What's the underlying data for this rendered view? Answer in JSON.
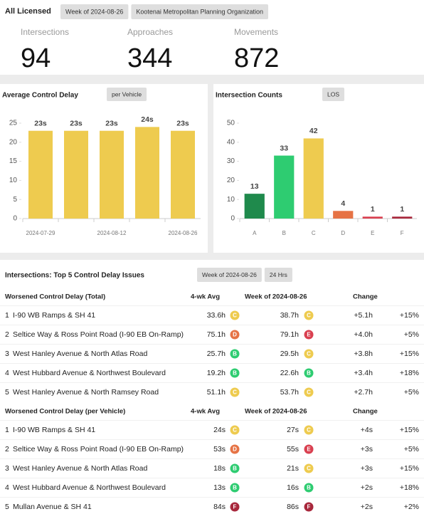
{
  "header": {
    "title": "All Licensed",
    "chips": [
      "Week of 2024-08-26",
      "Kootenai Metropolitan Planning Organization"
    ]
  },
  "kpis": [
    {
      "label": "Intersections",
      "value": 94
    },
    {
      "label": "Approaches",
      "value": 344
    },
    {
      "label": "Movements",
      "value": 872
    }
  ],
  "chart_data": [
    {
      "type": "bar",
      "title": "Average Control Delay",
      "badge": "per Vehicle",
      "categories": [
        "2024-07-29",
        null,
        "2024-08-12",
        null,
        "2024-08-26"
      ],
      "values": [
        23,
        23,
        23,
        24,
        23
      ],
      "value_labels": [
        "23s",
        "23s",
        "23s",
        "24s",
        "23s"
      ],
      "color": "#eecb4f",
      "ylim": [
        0,
        25
      ],
      "yticks": [
        0,
        5,
        10,
        15,
        20,
        25
      ]
    },
    {
      "type": "bar",
      "title": "Intersection Counts",
      "badge": "LOS",
      "categories": [
        "A",
        "B",
        "C",
        "D",
        "E",
        "F"
      ],
      "values": [
        13,
        33,
        42,
        4,
        1,
        1
      ],
      "colors": [
        "#1f8a4c",
        "#2ecc71",
        "#eecb4f",
        "#e67345",
        "#d94050",
        "#a8283c"
      ],
      "ylim": [
        0,
        50
      ],
      "yticks": [
        0,
        10,
        20,
        30,
        40,
        50
      ]
    }
  ],
  "table": {
    "title": "Intersections: Top 5 Control Delay Issues",
    "chips": [
      "Week of 2024-08-26",
      "24 Hrs"
    ],
    "sections": [
      {
        "header": [
          "Worsened Control Delay (Total)",
          "4-wk Avg",
          "Week of 2024-08-26",
          "Change"
        ],
        "rows": [
          {
            "rank": 1,
            "name": "I-90 WB Ramps & SH 41",
            "avg": "33.6h",
            "avg_los": "C",
            "week": "38.7h",
            "week_los": "C",
            "change": "+5.1h",
            "pct": "+15%"
          },
          {
            "rank": 2,
            "name": "Seltice Way & Ross Point Road (I-90 EB On-Ramp)",
            "avg": "75.1h",
            "avg_los": "D",
            "week": "79.1h",
            "week_los": "E",
            "change": "+4.0h",
            "pct": "+5%"
          },
          {
            "rank": 3,
            "name": "West Hanley Avenue & North Atlas Road",
            "avg": "25.7h",
            "avg_los": "B",
            "week": "29.5h",
            "week_los": "C",
            "change": "+3.8h",
            "pct": "+15%"
          },
          {
            "rank": 4,
            "name": "West Hubbard Avenue & Northwest Boulevard",
            "avg": "19.2h",
            "avg_los": "B",
            "week": "22.6h",
            "week_los": "B",
            "change": "+3.4h",
            "pct": "+18%"
          },
          {
            "rank": 5,
            "name": "West Hanley Avenue & North Ramsey Road",
            "avg": "51.1h",
            "avg_los": "C",
            "week": "53.7h",
            "week_los": "C",
            "change": "+2.7h",
            "pct": "+5%"
          }
        ]
      },
      {
        "header": [
          "Worsened Control Delay (per Vehicle)",
          "4-wk Avg",
          "Week of 2024-08-26",
          "Change"
        ],
        "rows": [
          {
            "rank": 1,
            "name": "I-90 WB Ramps & SH 41",
            "avg": "24s",
            "avg_los": "C",
            "week": "27s",
            "week_los": "C",
            "change": "+4s",
            "pct": "+15%"
          },
          {
            "rank": 2,
            "name": "Seltice Way & Ross Point Road (I-90 EB On-Ramp)",
            "avg": "53s",
            "avg_los": "D",
            "week": "55s",
            "week_los": "E",
            "change": "+3s",
            "pct": "+5%"
          },
          {
            "rank": 3,
            "name": "West Hanley Avenue & North Atlas Road",
            "avg": "18s",
            "avg_los": "B",
            "week": "21s",
            "week_los": "C",
            "change": "+3s",
            "pct": "+15%"
          },
          {
            "rank": 4,
            "name": "West Hubbard Avenue & Northwest Boulevard",
            "avg": "13s",
            "avg_los": "B",
            "week": "16s",
            "week_los": "B",
            "change": "+2s",
            "pct": "+18%"
          },
          {
            "rank": 5,
            "name": "Mullan Avenue & SH 41",
            "avg": "84s",
            "avg_los": "F",
            "week": "86s",
            "week_los": "F",
            "change": "+2s",
            "pct": "+2%"
          }
        ]
      }
    ]
  }
}
